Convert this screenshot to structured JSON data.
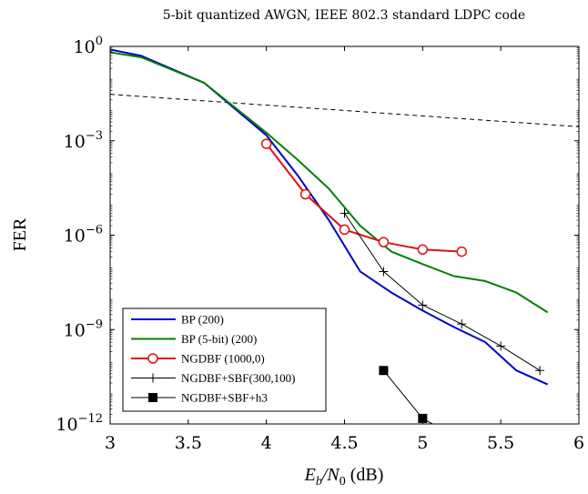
{
  "chart_data": {
    "type": "line",
    "title": "5-bit quantized AWGN, IEEE 802.3 standard LDPC code",
    "ylabel": "FER",
    "xlabel": "E_b/N_0 (dB)",
    "xlabel_parts": {
      "main": "E",
      "sub1": "b",
      "slash": "/N",
      "sub2": "0",
      "unit": " (dB)"
    },
    "yscale": "log",
    "xlim": [
      3,
      6
    ],
    "ylim": [
      1e-12,
      1
    ],
    "grid": false,
    "legend_position": "bottom-left",
    "x_ticks": [
      "3",
      "3.5",
      "4",
      "4.5",
      "5",
      "5.5",
      "6"
    ],
    "x_tick_values": [
      3,
      3.5,
      4,
      4.5,
      5,
      5.5,
      6
    ],
    "y_ticks": [
      {
        "base": "10",
        "exp": "0",
        "value": 1
      },
      {
        "base": "10",
        "exp": "−3",
        "value": 0.001
      },
      {
        "base": "10",
        "exp": "−6",
        "value": 1e-06
      },
      {
        "base": "10",
        "exp": "−9",
        "value": 1e-09
      },
      {
        "base": "10",
        "exp": "−12",
        "value": 1e-12
      }
    ],
    "series": [
      {
        "name": "BP (200)",
        "color": "#0000cc",
        "marker": "none",
        "x": [
          3.0,
          3.2,
          3.6,
          4.0,
          4.2,
          4.4,
          4.6,
          4.8,
          5.0,
          5.2,
          5.4,
          5.6,
          5.8
        ],
        "y": [
          0.8,
          0.5,
          0.07,
          0.0015,
          8e-05,
          3e-06,
          7e-08,
          1.5e-08,
          4e-09,
          1.2e-09,
          4e-10,
          5e-11,
          1.8e-11
        ]
      },
      {
        "name": "BP (5-bit) (200)",
        "color": "#008000",
        "marker": "none",
        "x": [
          3.0,
          3.2,
          3.6,
          4.0,
          4.2,
          4.4,
          4.6,
          4.8,
          5.0,
          5.2,
          5.4,
          5.6,
          5.8
        ],
        "y": [
          0.65,
          0.45,
          0.07,
          0.0018,
          0.00025,
          3e-05,
          2e-06,
          3e-07,
          1.2e-07,
          5e-08,
          3.5e-08,
          1.5e-08,
          3.5e-09
        ]
      },
      {
        "name": "NGDBF (1000,0)",
        "color": "#dd1111",
        "marker": "circle",
        "x": [
          4.0,
          4.25,
          4.5,
          4.75,
          5.0,
          5.25
        ],
        "y": [
          0.0008,
          2e-05,
          1.5e-06,
          6e-07,
          3.5e-07,
          3e-07
        ]
      },
      {
        "name": "NGDBF+SBF(300,100)",
        "color": "#000000",
        "marker": "plus",
        "x": [
          4.5,
          4.75,
          5.0,
          5.25,
          5.5,
          5.75
        ],
        "y": [
          5e-06,
          7e-08,
          6e-09,
          1.5e-09,
          3e-10,
          5e-11
        ]
      },
      {
        "name": "NGDBF+SBF+h3",
        "color": "#000000",
        "marker": "square",
        "x": [
          4.75,
          5.0,
          5.25
        ],
        "y": [
          5e-11,
          1.5e-12,
          3e-13
        ]
      }
    ],
    "reference_line": {
      "style": "dashed",
      "color": "#000000",
      "x": [
        3.0,
        6.0
      ],
      "y": [
        0.03,
        0.0028
      ]
    }
  }
}
